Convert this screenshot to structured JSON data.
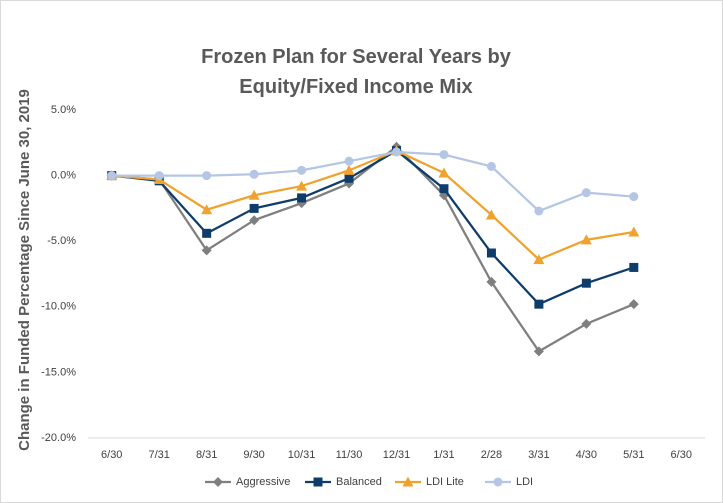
{
  "chart_data": {
    "type": "line",
    "title": "Frozen Plan for Several Years by Equity/Fixed Income Mix",
    "y_label": "Change in Funded Percentage Since June 30, 2019",
    "categories": [
      "6/30",
      "7/31",
      "8/31",
      "9/30",
      "10/31",
      "11/30",
      "12/31",
      "1/31",
      "2/28",
      "3/31",
      "4/30",
      "5/31",
      "6/30"
    ],
    "series": [
      {
        "name": "Aggressive",
        "color": "#7f7f7f",
        "marker": "diamond",
        "values": [
          0,
          -0.3,
          -5.7,
          -3.4,
          -2.1,
          -0.6,
          2.2,
          -1.5,
          -8.1,
          -13.4,
          -11.3,
          -9.8,
          null
        ]
      },
      {
        "name": "Balanced",
        "color": "#0e3d6b",
        "marker": "square",
        "values": [
          0,
          -0.4,
          -4.4,
          -2.5,
          -1.7,
          -0.2,
          1.9,
          -1.0,
          -5.9,
          -9.8,
          -8.2,
          -7.0,
          null
        ]
      },
      {
        "name": "LDI Lite",
        "color": "#f0a22e",
        "marker": "triangle",
        "values": [
          0,
          -0.3,
          -2.6,
          -1.5,
          -0.8,
          0.4,
          1.9,
          0.2,
          -3.0,
          -6.4,
          -4.9,
          -4.3,
          null
        ]
      },
      {
        "name": "LDI",
        "color": "#b4c6e4",
        "marker": "circle",
        "values": [
          0,
          0,
          0,
          0.1,
          0.4,
          1.1,
          1.8,
          1.6,
          0.7,
          -2.7,
          -1.3,
          -1.6,
          null
        ]
      }
    ],
    "ylim": [
      -20,
      5
    ],
    "yticks": [
      {
        "value": -20,
        "label": "-20.0%"
      },
      {
        "value": -15,
        "label": "-15.0%"
      },
      {
        "value": -10,
        "label": "-10.0%"
      },
      {
        "value": -5,
        "label": "-5.0%"
      },
      {
        "value": 0,
        "label": "0.0%"
      },
      {
        "value": 5,
        "label": "5.0%"
      }
    ],
    "grid": false,
    "legend": "bottom"
  }
}
